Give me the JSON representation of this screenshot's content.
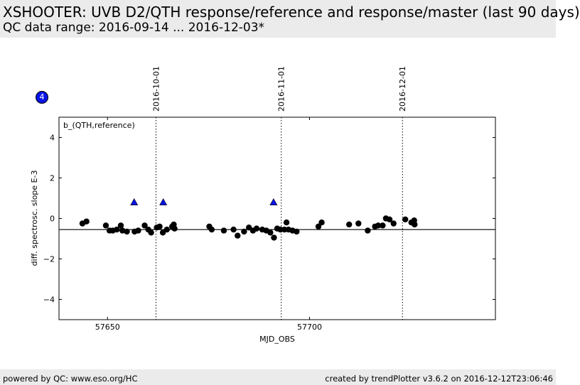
{
  "header": {
    "title": "XSHOOTER: UVB D2/QTH response/reference and response/master (last 90 days)",
    "subtitle": "QC data range: 2016-09-14 ... 2016-12-03*"
  },
  "badge": {
    "label": "4"
  },
  "footer": {
    "left": "powered by QC: www.eso.org/HC",
    "right": "created by trendPlotter v3.6.2 on 2016-12-12T23:06:46"
  },
  "colors": {
    "header_bg": "#ebebeb",
    "badge": "#0a14e6",
    "triangle": "#0a14e6",
    "dots": "#000000"
  },
  "chart_data": {
    "type": "scatter",
    "panel_label": "b_(QTH,reference)",
    "xlabel": "MJD_OBS",
    "ylabel": "diff. spectrosc. slope E-3",
    "xlim": [
      57638,
      57746
    ],
    "ylim": [
      -5,
      5
    ],
    "x_ticks": [
      57650,
      57700
    ],
    "y_ticks": [
      -4,
      -2,
      0,
      2,
      4
    ],
    "y_tick_labels": [
      "−4",
      "−2",
      "0",
      "2",
      "4"
    ],
    "reference_line": -0.55,
    "date_markers": [
      {
        "label": "2016-10-01",
        "x": 57662
      },
      {
        "label": "2016-11-01",
        "x": 57693
      },
      {
        "label": "2016-12-01",
        "x": 57723
      }
    ],
    "series": [
      {
        "marker": "circle",
        "points": [
          [
            57643.8,
            -0.25
          ],
          [
            57644.8,
            -0.15
          ],
          [
            57649.6,
            -0.35
          ],
          [
            57650.5,
            -0.6
          ],
          [
            57651.3,
            -0.6
          ],
          [
            57652.3,
            -0.55
          ],
          [
            57653.3,
            -0.35
          ],
          [
            57653.7,
            -0.6
          ],
          [
            57654.8,
            -0.65
          ],
          [
            57656.7,
            -0.65
          ],
          [
            57657.6,
            -0.6
          ],
          [
            57659.2,
            -0.35
          ],
          [
            57660.1,
            -0.55
          ],
          [
            57660.8,
            -0.7
          ],
          [
            57662.2,
            -0.45
          ],
          [
            57662.9,
            -0.4
          ],
          [
            57663.7,
            -0.7
          ],
          [
            57664.7,
            -0.55
          ],
          [
            57666.0,
            -0.4
          ],
          [
            57666.4,
            -0.3
          ],
          [
            57666.6,
            -0.5
          ],
          [
            57675.2,
            -0.4
          ],
          [
            57675.8,
            -0.55
          ],
          [
            57678.8,
            -0.6
          ],
          [
            57681.2,
            -0.55
          ],
          [
            57682.2,
            -0.85
          ],
          [
            57683.8,
            -0.65
          ],
          [
            57685.0,
            -0.45
          ],
          [
            57686.0,
            -0.6
          ],
          [
            57686.9,
            -0.5
          ],
          [
            57688.3,
            -0.55
          ],
          [
            57689.3,
            -0.6
          ],
          [
            57690.3,
            -0.7
          ],
          [
            57691.2,
            -0.95
          ],
          [
            57692.0,
            -0.5
          ],
          [
            57692.8,
            -0.55
          ],
          [
            57693.8,
            -0.55
          ],
          [
            57694.3,
            -0.2
          ],
          [
            57694.8,
            -0.55
          ],
          [
            57695.8,
            -0.6
          ],
          [
            57696.8,
            -0.65
          ],
          [
            57702.2,
            -0.4
          ],
          [
            57703.0,
            -0.2
          ],
          [
            57709.8,
            -0.3
          ],
          [
            57712.1,
            -0.25
          ],
          [
            57714.4,
            -0.6
          ],
          [
            57716.2,
            -0.4
          ],
          [
            57717.0,
            -0.35
          ],
          [
            57718.1,
            -0.35
          ],
          [
            57718.9,
            0.0
          ],
          [
            57719.8,
            -0.05
          ],
          [
            57720.8,
            -0.25
          ],
          [
            57723.7,
            -0.05
          ],
          [
            57725.2,
            -0.2
          ],
          [
            57725.9,
            -0.1
          ],
          [
            57726.0,
            -0.3
          ]
        ]
      },
      {
        "marker": "triangle",
        "points": [
          [
            57656.6,
            0.8
          ],
          [
            57663.8,
            0.8
          ],
          [
            57691.1,
            0.8
          ]
        ]
      }
    ]
  }
}
